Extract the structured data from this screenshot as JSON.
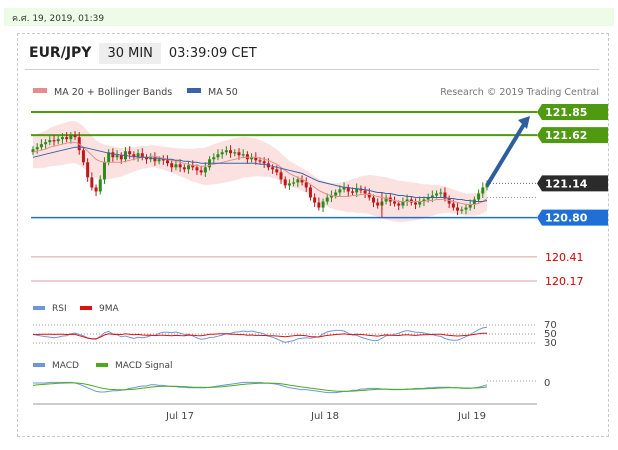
{
  "topbar": {
    "timestamp": "ค.ศ. 19, 2019, 01:39"
  },
  "header": {
    "pair": "EUR/JPY",
    "timeframe": "30 MIN",
    "time": "03:39:09 CET"
  },
  "legend": {
    "ma20": "MA 20 + Bollinger Bands",
    "ma50": "MA 50",
    "credit": "Research © 2019 Trading Central"
  },
  "colors": {
    "resistance": "#4f9a11",
    "support": "#1f6fd6",
    "weak_level": "#e59b9b",
    "weak_level_text": "#d40000",
    "last_price": "#2b2b2b",
    "ma20": "#e88b8b",
    "ma50": "#3b63a7",
    "band": "#fbdcdc",
    "up_candle": "#2a8a1a",
    "down_candle": "#c01818",
    "forecast_arrow": "#2e5e9e",
    "rsi": "#6d96dc",
    "rsi_ma": "#e01010",
    "macd": "#6d96dc",
    "macd_signal": "#4caa1c"
  },
  "chart_data": {
    "type": "candlestick",
    "x_labels": [
      "Jul 17",
      "Jul 18",
      "Jul 19"
    ],
    "levels": [
      {
        "price": 121.85,
        "label": "121.85",
        "kind": "resistance"
      },
      {
        "price": 121.62,
        "label": "121.62",
        "kind": "resistance"
      },
      {
        "price": 121.14,
        "label": "121.14",
        "kind": "last"
      },
      {
        "price": 120.8,
        "label": "120.80",
        "kind": "support"
      },
      {
        "price": 120.41,
        "label": "120.41",
        "kind": "weak"
      },
      {
        "price": 120.17,
        "label": "120.17",
        "kind": "weak"
      }
    ],
    "price_range": [
      120.1,
      121.95
    ],
    "close": [
      121.48,
      121.5,
      121.53,
      121.55,
      121.57,
      121.56,
      121.58,
      121.6,
      121.58,
      121.62,
      121.6,
      121.47,
      121.35,
      121.2,
      121.1,
      121.06,
      121.18,
      121.35,
      121.45,
      121.4,
      121.42,
      121.38,
      121.46,
      121.43,
      121.4,
      121.44,
      121.4,
      121.38,
      121.4,
      121.36,
      121.38,
      121.37,
      121.34,
      121.3,
      121.33,
      121.3,
      121.28,
      121.32,
      121.3,
      121.27,
      121.25,
      121.3,
      121.38,
      121.4,
      121.43,
      121.45,
      121.47,
      121.44,
      121.45,
      121.42,
      121.43,
      121.38,
      121.4,
      121.37,
      121.36,
      121.34,
      121.3,
      121.28,
      121.25,
      121.18,
      121.12,
      121.14,
      121.15,
      121.18,
      121.15,
      121.1,
      121.0,
      120.95,
      120.9,
      120.96,
      121.0,
      121.02,
      121.05,
      121.08,
      121.1,
      121.06,
      121.05,
      121.09,
      121.07,
      121.04,
      121.0,
      120.95,
      120.92,
      120.96,
      121.0,
      120.96,
      120.94,
      120.92,
      120.96,
      120.98,
      120.95,
      120.93,
      120.96,
      120.98,
      121.0,
      121.02,
      121.04,
      121.05,
      120.99,
      120.94,
      120.9,
      120.87,
      120.88,
      120.9,
      120.93,
      120.98,
      121.04,
      121.1,
      121.14
    ],
    "ma20": [
      121.45,
      121.46,
      121.47,
      121.48,
      121.5,
      121.51,
      121.52,
      121.53,
      121.54,
      121.55,
      121.55,
      121.53,
      121.5,
      121.46,
      121.42,
      121.38,
      121.36,
      121.35,
      121.35,
      121.35,
      121.35,
      121.35,
      121.36,
      121.37,
      121.38,
      121.39,
      121.4,
      121.4,
      121.41,
      121.41,
      121.4,
      121.39,
      121.38,
      121.37,
      121.36,
      121.35,
      121.34,
      121.33,
      121.32,
      121.32,
      121.31,
      121.31,
      121.32,
      121.33,
      121.34,
      121.35,
      121.36,
      121.37,
      121.38,
      121.39,
      121.4,
      121.4,
      121.4,
      121.4,
      121.39,
      121.38,
      121.37,
      121.35,
      121.33,
      121.3,
      121.27,
      121.24,
      121.22,
      121.2,
      121.18,
      121.16,
      121.13,
      121.1,
      121.07,
      121.05,
      121.03,
      121.02,
      121.01,
      121.01,
      121.01,
      121.01,
      121.02,
      121.02,
      121.03,
      121.03,
      121.03,
      121.02,
      121.01,
      121.0,
      120.99,
      120.98,
      120.97,
      120.96,
      120.96,
      120.96,
      120.96,
      120.96,
      120.96,
      120.96,
      120.97,
      120.97,
      120.98,
      120.98,
      120.98,
      120.97,
      120.96,
      120.95,
      120.94,
      120.93,
      120.93,
      120.93,
      120.94,
      120.96,
      120.99
    ],
    "ma50": [
      121.4,
      121.41,
      121.42,
      121.43,
      121.44,
      121.45,
      121.46,
      121.47,
      121.48,
      121.49,
      121.5,
      121.5,
      121.5,
      121.49,
      121.48,
      121.47,
      121.46,
      121.45,
      121.44,
      121.43,
      121.43,
      121.42,
      121.42,
      121.41,
      121.41,
      121.4,
      121.4,
      121.4,
      121.39,
      121.39,
      121.39,
      121.38,
      121.38,
      121.38,
      121.37,
      121.37,
      121.36,
      121.36,
      121.35,
      121.35,
      121.34,
      121.34,
      121.34,
      121.34,
      121.34,
      121.34,
      121.34,
      121.34,
      121.34,
      121.34,
      121.34,
      121.34,
      121.34,
      121.34,
      121.33,
      121.33,
      121.32,
      121.31,
      121.3,
      121.29,
      121.28,
      121.27,
      121.26,
      121.25,
      121.24,
      121.22,
      121.2,
      121.18,
      121.16,
      121.15,
      121.14,
      121.13,
      121.12,
      121.11,
      121.1,
      121.1,
      121.09,
      121.09,
      121.08,
      121.08,
      121.07,
      121.06,
      121.05,
      121.05,
      121.04,
      121.04,
      121.03,
      121.02,
      121.02,
      121.01,
      121.01,
      121.0,
      121.0,
      121.0,
      121.0,
      121.0,
      121.0,
      121.0,
      121.0,
      120.99,
      120.99,
      120.98,
      120.98,
      120.97,
      120.97,
      120.96,
      120.96,
      120.96,
      120.97
    ],
    "forecast_target": 121.85,
    "rsi": {
      "levels": [
        "70",
        "50",
        "30"
      ]
    },
    "macd": {
      "levels": [
        "0"
      ]
    },
    "sub_legend": {
      "rsi": "RSI",
      "rsi_ma": "9MA",
      "macd": "MACD",
      "macd_signal": "MACD Signal"
    }
  }
}
